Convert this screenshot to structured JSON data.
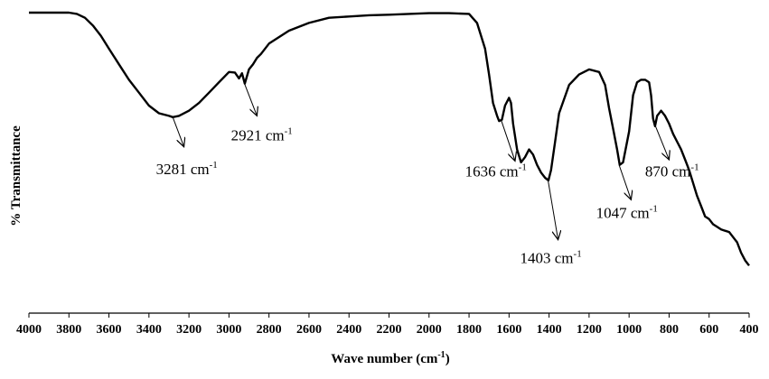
{
  "chart_data": {
    "type": "line",
    "title": "",
    "xlabel": "Wave number (cm",
    "xlabel_sup": "-1",
    "xlabel_close": ")",
    "ylabel": "% Transmittance",
    "x_reversed": true,
    "xlim": [
      4000,
      400
    ],
    "ylim": [
      0,
      100
    ],
    "grid": false,
    "line_color": "#000000",
    "x_ticks": [
      4000,
      3800,
      3600,
      3400,
      3200,
      3000,
      2800,
      2600,
      2400,
      2200,
      2000,
      1800,
      1600,
      1400,
      1200,
      1000,
      800,
      600,
      400
    ],
    "x_tick_labels": [
      "4000",
      "3800",
      "3600",
      "3400",
      "3200",
      "3000",
      "2800",
      "2600",
      "2400",
      "2200",
      "2000",
      "1800",
      "1600",
      "1400",
      "1200",
      "1000",
      "800",
      "600",
      "400"
    ],
    "series": [
      {
        "x": [
          4000,
          3900,
          3800,
          3760,
          3720,
          3680,
          3640,
          3600,
          3550,
          3500,
          3450,
          3400,
          3350,
          3300,
          3281,
          3250,
          3200,
          3150,
          3100,
          3050,
          3000,
          2970,
          2950,
          2935,
          2921,
          2900,
          2880,
          2860,
          2840,
          2800,
          2700,
          2600,
          2500,
          2400,
          2300,
          2200,
          2100,
          2000,
          1900,
          1800,
          1760,
          1720,
          1700,
          1680,
          1660,
          1650,
          1636,
          1620,
          1600,
          1590,
          1580,
          1560,
          1540,
          1520,
          1500,
          1480,
          1460,
          1440,
          1420,
          1403,
          1390,
          1370,
          1350,
          1300,
          1250,
          1200,
          1150,
          1120,
          1100,
          1080,
          1060,
          1047,
          1030,
          1000,
          980,
          960,
          940,
          920,
          900,
          890,
          880,
          870,
          860,
          840,
          820,
          800,
          780,
          760,
          740,
          720,
          700,
          680,
          660,
          640,
          620,
          600,
          580,
          560,
          540,
          520,
          500,
          480,
          460,
          440,
          420,
          400
        ],
        "y": [
          100,
          100,
          100,
          99.5,
          98,
          95,
          91,
          86,
          80,
          74,
          69,
          64,
          61,
          60,
          59.5,
          60,
          62,
          65,
          69,
          73,
          77,
          76.8,
          74.5,
          76.5,
          72.5,
          78,
          80,
          82.5,
          84,
          88,
          93,
          96,
          98,
          98.5,
          99,
          99.2,
          99.5,
          99.8,
          99.8,
          99.5,
          96,
          86,
          76,
          65,
          60,
          58,
          58.5,
          64,
          67,
          65,
          57,
          47,
          42,
          44,
          47,
          45,
          41,
          38,
          36,
          35,
          39,
          50,
          61,
          72,
          76,
          78,
          77,
          72,
          63,
          55,
          47,
          41,
          42,
          54,
          68,
          73,
          74,
          74,
          73,
          68,
          59,
          56,
          60,
          62,
          60,
          57,
          53,
          50,
          47,
          43,
          39,
          34,
          29,
          25,
          21,
          20,
          18,
          17,
          16,
          15.5,
          15,
          13,
          11,
          7,
          4,
          2
        ]
      }
    ],
    "annotations": [
      {
        "label": "3281 cm",
        "sup": "-1",
        "point": [
          3281,
          59.5
        ],
        "arrow_to": [
          3225,
          48.0
        ],
        "text_at": [
          3365,
          37.5
        ]
      },
      {
        "label": "2921 cm",
        "sup": "-1",
        "point": [
          2925,
          73.0
        ],
        "arrow_to": [
          2860,
          60.0
        ],
        "text_at": [
          2990,
          50.5
        ]
      },
      {
        "label": "1636 cm",
        "sup": "-1",
        "point": [
          1640,
          58.5
        ],
        "arrow_to": [
          1570,
          42.5
        ],
        "text_at": [
          1820,
          36.5
        ]
      },
      {
        "label": "1403 cm",
        "sup": "-1",
        "point": [
          1405,
          35.0
        ],
        "arrow_to": [
          1355,
          12.0
        ],
        "text_at": [
          1545,
          3.0
        ]
      },
      {
        "label": "1047 cm",
        "sup": "-1",
        "point": [
          1050,
          41.0
        ],
        "arrow_to": [
          990,
          27.5
        ],
        "text_at": [
          1165,
          20.5
        ]
      },
      {
        "label": "870 cm",
        "sup": "-1",
        "point": [
          868,
          56.0
        ],
        "arrow_to": [
          800,
          43.0
        ],
        "text_at": [
          920,
          36.5
        ]
      }
    ]
  }
}
